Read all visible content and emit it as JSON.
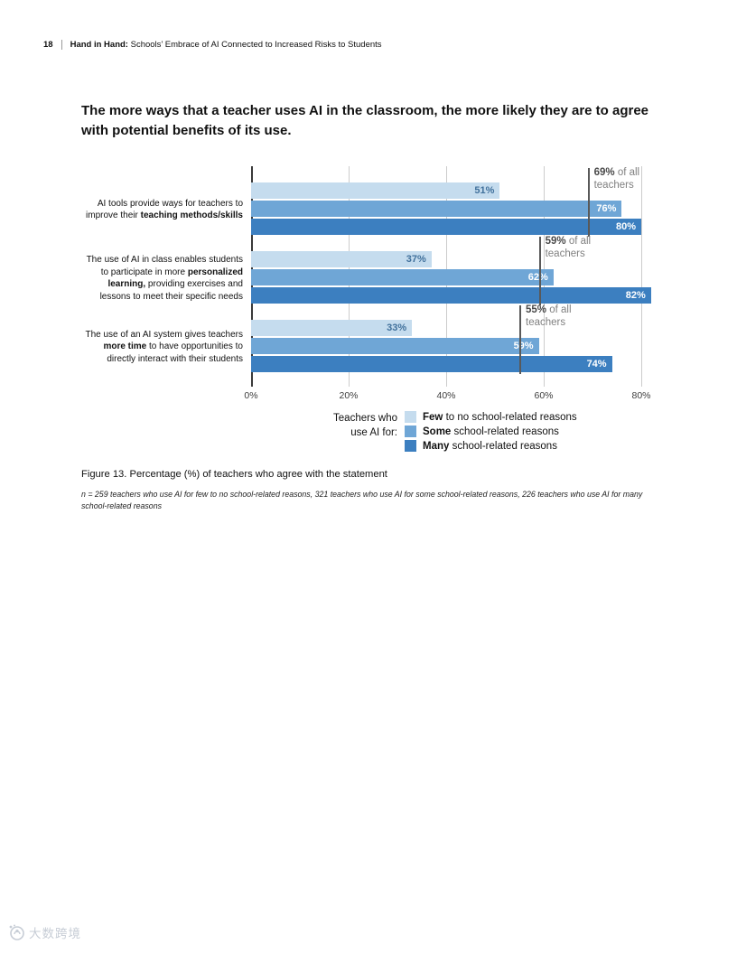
{
  "page": {
    "number": "18",
    "header_bold": "Hand in Hand:",
    "header_rest": " Schools’ Embrace of AI Connected to Increased Risks to Students"
  },
  "chart_data": {
    "type": "bar",
    "orientation": "horizontal",
    "title": "The more ways that a teacher uses AI in the classroom, the more likely they are to agree with potential benefits of its use.",
    "unit": "%",
    "axis": {
      "ticks": [
        {
          "label": "0%",
          "value": 0
        },
        {
          "label": "20%",
          "value": 20
        },
        {
          "label": "40%",
          "value": 40
        },
        {
          "label": "60%",
          "value": 60
        },
        {
          "label": "80%",
          "value": 80
        }
      ],
      "max": 85,
      "grid": true
    },
    "series": [
      {
        "key": "few",
        "name": "Few to no school-related reasons",
        "color": "#c5dcee",
        "value_color": "#41719c"
      },
      {
        "key": "some",
        "name": "Some school-related reasons",
        "color": "#6fa6d6",
        "value_color": "#ffffff"
      },
      {
        "key": "many",
        "name": "Many school-related reasons",
        "color": "#3c7fc0",
        "value_color": "#ffffff"
      }
    ],
    "groups": [
      {
        "label_segments": [
          {
            "t": "AI tools provide ways for teachers to improve their ",
            "b": false
          },
          {
            "t": "teaching methods/skills",
            "b": true
          }
        ],
        "values": [
          51,
          76,
          80
        ],
        "reference": {
          "value": 69,
          "bold": "69%",
          "rest": " of all teachers"
        }
      },
      {
        "label_segments": [
          {
            "t": "The use of AI in class enables students to participate in more ",
            "b": false
          },
          {
            "t": "personalized learning,",
            "b": true
          },
          {
            "t": " providing exercises and lessons to meet their specific needs",
            "b": false
          }
        ],
        "values": [
          37,
          62,
          82
        ],
        "reference": {
          "value": 59,
          "bold": "59%",
          "rest": " of all teachers"
        }
      },
      {
        "label_segments": [
          {
            "t": "The use of an AI system gives teachers ",
            "b": false
          },
          {
            "t": "more time",
            "b": true
          },
          {
            "t": " to have opportunities to directly interact with their students",
            "b": false
          }
        ],
        "values": [
          33,
          59,
          74
        ],
        "reference": {
          "value": 55,
          "bold": "55%",
          "rest": " of all teachers"
        }
      }
    ]
  },
  "legend": {
    "title": "Teachers who use AI for:",
    "items": [
      {
        "bold": "Few",
        "rest": " to no school-related reasons"
      },
      {
        "bold": "Some",
        "rest": " school-related reasons"
      },
      {
        "bold": "Many",
        "rest": " school-related reasons"
      }
    ]
  },
  "caption": "Figure 13. Percentage (%) of teachers who agree with the statement",
  "note": "n = 259 teachers who use AI for few to no school-related reasons, 321 teachers who use AI for some school-related reasons, 226 teachers who use AI for many school-related reasons",
  "watermark": {
    "text": "大数跨境"
  }
}
